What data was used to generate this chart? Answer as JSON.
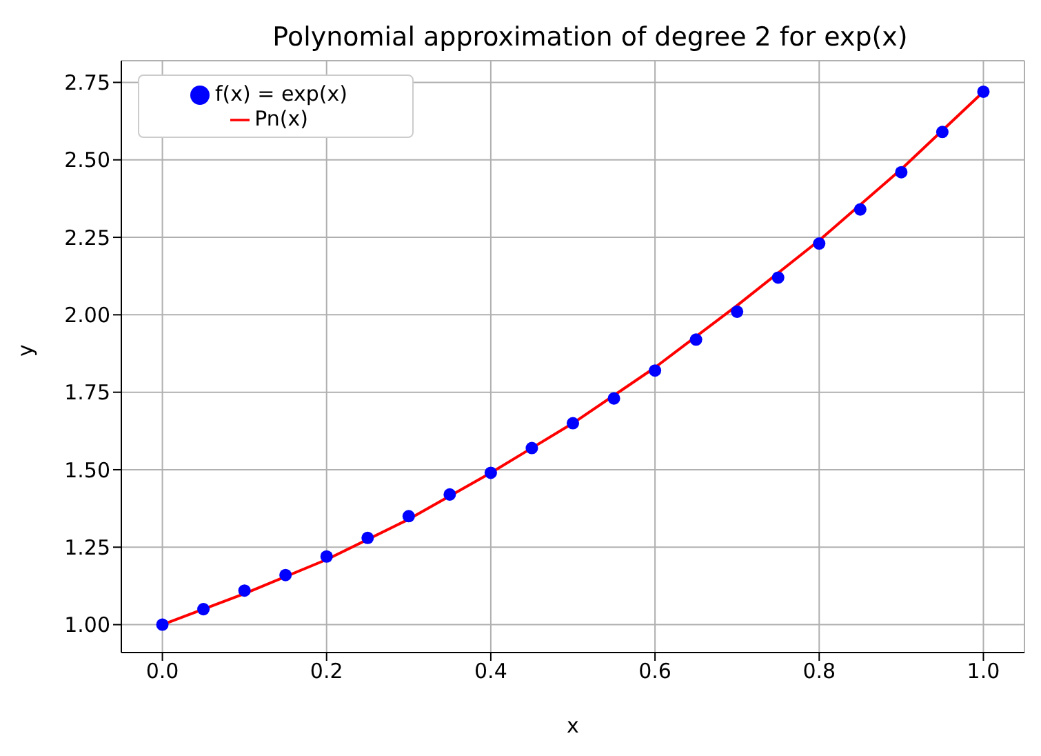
{
  "chart_data": {
    "type": "line",
    "title": "Polynomial approximation of degree 2 for exp(x)",
    "xlabel": "x",
    "ylabel": "y",
    "xlim": [
      -0.05,
      1.05
    ],
    "xticks": [
      {
        "value": 0,
        "label": "0.0"
      },
      0.2,
      0.4,
      0.6,
      0.8,
      {
        "value": 1,
        "label": "1.0"
      }
    ],
    "ylim": [
      0.91,
      2.82
    ],
    "yticks": [
      {
        "value": 1,
        "label": "1.00"
      },
      1.25,
      {
        "value": 1.5,
        "label": "1.50"
      },
      1.75,
      {
        "value": 2,
        "label": "2.00"
      },
      2.25,
      {
        "value": 2.5,
        "label": "2.50"
      },
      2.75
    ],
    "grid": true,
    "legend": "top left",
    "series": [
      {
        "name": "f(x) = exp(x)",
        "type": "scatter",
        "marker": "circle",
        "color": "#0000ff",
        "x": [
          0,
          0.05,
          0.1,
          0.15,
          0.2,
          0.25,
          0.3,
          0.35,
          0.4,
          0.45,
          0.5,
          0.55,
          0.6,
          0.65,
          0.7,
          0.75,
          0.8,
          0.85,
          0.9,
          0.95,
          1
        ],
        "values": [
          1,
          1.05,
          1.11,
          1.16,
          1.22,
          1.28,
          1.35,
          1.42,
          1.49,
          1.57,
          1.65,
          1.73,
          1.82,
          1.92,
          2.01,
          2.12,
          2.23,
          2.34,
          2.46,
          2.59,
          2.72
        ]
      },
      {
        "name": "Pn(x)",
        "marker": "none",
        "line_style": "solid",
        "color": "#ff0000",
        "x": [
          0,
          0.1,
          0.2,
          0.3,
          0.4,
          0.5,
          0.6,
          0.7,
          0.8,
          0.9,
          1
        ],
        "values": [
          1,
          1.1,
          1.21,
          1.34,
          1.49,
          1.65,
          1.83,
          2.03,
          2.24,
          2.47,
          2.72
        ]
      }
    ]
  }
}
